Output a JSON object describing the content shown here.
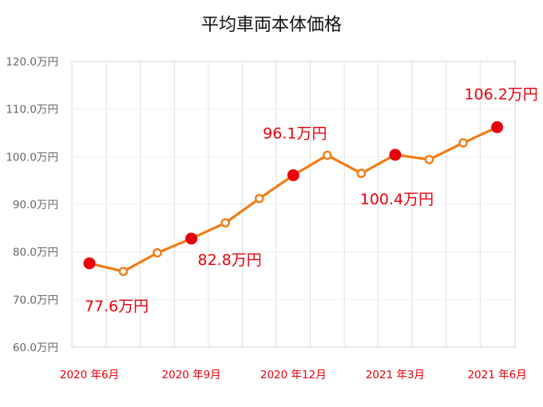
{
  "chart_data": {
    "type": "line",
    "title": "平均車両本体価格",
    "xlabel": "",
    "ylabel": "",
    "ylim": [
      60,
      120
    ],
    "yticks": [
      60,
      70,
      80,
      90,
      100,
      110,
      120
    ],
    "ytick_labels": [
      "60.0万円",
      "70.0万円",
      "80.0万円",
      "90.0万円",
      "100.0万円",
      "110.0万円",
      "120.0万円"
    ],
    "grid": true,
    "x_tick_labels": [
      {
        "label": "2020 年6月",
        "index": 0
      },
      {
        "label": "2020 年9月",
        "index": 3
      },
      {
        "label": "2020 年12月",
        "index": 6
      },
      {
        "label": "2021 年3月",
        "index": 9
      },
      {
        "label": "2021 年6月",
        "index": 12
      }
    ],
    "series": [
      {
        "values": [
          77.6,
          75.9,
          79.8,
          82.8,
          86.1,
          91.2,
          96.1,
          100.3,
          96.5,
          100.4,
          99.4,
          102.9,
          106.2
        ],
        "color": "#f07c14"
      }
    ],
    "highlighted_points": [
      0,
      3,
      6,
      9,
      12
    ],
    "highlight_color": "#e8000b",
    "label_color": "#e8000b",
    "data_labels": [
      {
        "index": 0,
        "text": "77.6万円"
      },
      {
        "index": 3,
        "text": "82.8万円"
      },
      {
        "index": 6,
        "text": "96.1万円"
      },
      {
        "index": 9,
        "text": "100.4万円"
      },
      {
        "index": 12,
        "text": "106.2万円"
      }
    ]
  }
}
